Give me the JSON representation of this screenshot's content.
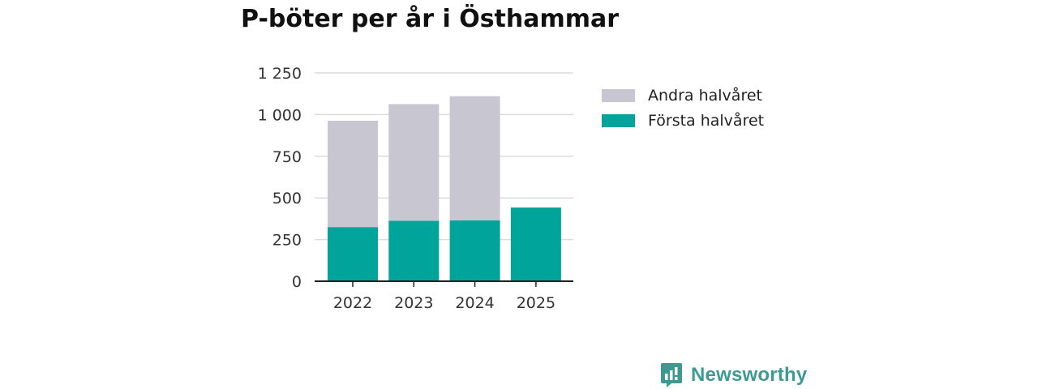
{
  "colors": {
    "first_half": "#00a49a",
    "second_half": "#c7c6d1",
    "grid": "#dcdcdc",
    "axis": "#222222",
    "brand": "#3d9a92"
  },
  "brand": {
    "name": "Newsworthy",
    "icon": "newsworthy-logo-icon"
  },
  "chart_data": {
    "type": "bar",
    "stacked": true,
    "title": "P-böter per år i Östhammar",
    "xlabel": "",
    "ylabel": "",
    "categories": [
      "2022",
      "2023",
      "2024",
      "2025"
    ],
    "ylim": [
      0,
      1250
    ],
    "yticks": [
      0,
      250,
      500,
      750,
      1000,
      1250
    ],
    "ytick_labels": [
      "0",
      "250",
      "500",
      "750",
      "1 000",
      "1 250"
    ],
    "grid": true,
    "legend_position": "right",
    "legend": [
      "Andra halvåret",
      "Första halvåret"
    ],
    "series": [
      {
        "name": "Första halvåret",
        "values": [
          325,
          363,
          365,
          442
        ]
      },
      {
        "name": "Andra halvåret",
        "values": [
          638,
          700,
          745,
          0
        ]
      }
    ]
  }
}
